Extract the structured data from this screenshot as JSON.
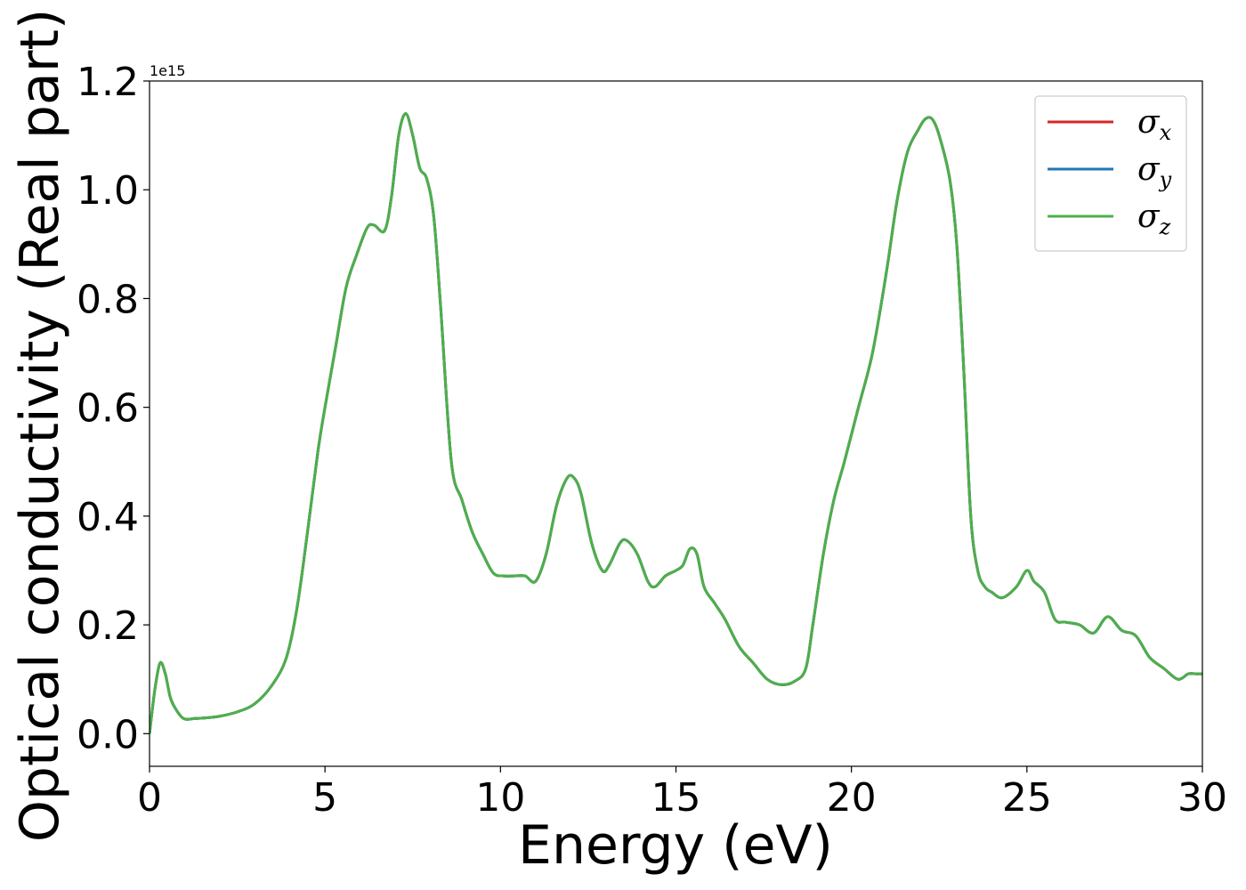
{
  "chart_data": {
    "type": "line",
    "title": "",
    "xlabel": "Energy (eV)",
    "ylabel": "Optical conductivity (Real part)",
    "y_offset_label": "1e15",
    "xlim": [
      0,
      30
    ],
    "ylim": [
      -0.06,
      1.2
    ],
    "xticks": [
      0,
      5,
      10,
      15,
      20,
      25,
      30
    ],
    "yticks": [
      0.0,
      0.2,
      0.4,
      0.6,
      0.8,
      1.0,
      1.2
    ],
    "xtick_labels": [
      "0",
      "5",
      "10",
      "15",
      "20",
      "25",
      "30"
    ],
    "ytick_labels": [
      "0.0",
      "0.2",
      "0.4",
      "0.6",
      "0.8",
      "1.0",
      "1.2"
    ],
    "grid": false,
    "legend_position": "top-right",
    "legend": [
      {
        "symbol": "σ",
        "sub": "x",
        "color": "#d62728"
      },
      {
        "symbol": "σ",
        "sub": "y",
        "color": "#1f77b4"
      },
      {
        "symbol": "σ",
        "sub": "z",
        "color": "#4daf4a"
      }
    ],
    "x": [
      0,
      0.15,
      0.3,
      0.45,
      0.6,
      0.8,
      1.0,
      1.3,
      1.6,
      2.0,
      2.5,
      3.0,
      3.5,
      3.9,
      4.2,
      4.5,
      4.8,
      5.0,
      5.3,
      5.6,
      5.9,
      6.2,
      6.4,
      6.7,
      6.9,
      7.1,
      7.3,
      7.5,
      7.7,
      7.9,
      8.1,
      8.3,
      8.6,
      8.9,
      9.2,
      9.5,
      9.8,
      10.1,
      10.4,
      10.7,
      11.0,
      11.3,
      11.6,
      11.9,
      12.1,
      12.3,
      12.6,
      12.9,
      13.1,
      13.4,
      13.6,
      13.9,
      14.2,
      14.4,
      14.7,
      15.0,
      15.2,
      15.4,
      15.6,
      15.8,
      16.1,
      16.4,
      16.8,
      17.2,
      17.6,
      18.0,
      18.4,
      18.7,
      18.9,
      19.2,
      19.5,
      19.8,
      20.2,
      20.6,
      21.0,
      21.3,
      21.6,
      21.9,
      22.1,
      22.3,
      22.5,
      22.8,
      23.0,
      23.2,
      23.4,
      23.6,
      23.8,
      24.0,
      24.3,
      24.7,
      25.0,
      25.2,
      25.5,
      25.8,
      26.1,
      26.5,
      26.9,
      27.3,
      27.7,
      28.1,
      28.5,
      28.9,
      29.3,
      29.6,
      29.8,
      30.0
    ],
    "series": [
      {
        "name": "σx",
        "values": [
          0.0,
          0.08,
          0.13,
          0.11,
          0.065,
          0.04,
          0.027,
          0.028,
          0.029,
          0.032,
          0.04,
          0.055,
          0.09,
          0.14,
          0.23,
          0.37,
          0.52,
          0.6,
          0.71,
          0.82,
          0.88,
          0.93,
          0.935,
          0.925,
          0.99,
          1.1,
          1.14,
          1.1,
          1.04,
          1.02,
          0.95,
          0.78,
          0.5,
          0.43,
          0.37,
          0.33,
          0.295,
          0.29,
          0.29,
          0.29,
          0.28,
          0.33,
          0.42,
          0.47,
          0.47,
          0.44,
          0.35,
          0.3,
          0.31,
          0.35,
          0.355,
          0.33,
          0.28,
          0.27,
          0.29,
          0.3,
          0.31,
          0.34,
          0.33,
          0.27,
          0.24,
          0.21,
          0.16,
          0.13,
          0.1,
          0.09,
          0.097,
          0.12,
          0.2,
          0.33,
          0.43,
          0.5,
          0.6,
          0.7,
          0.85,
          0.98,
          1.07,
          1.11,
          1.13,
          1.13,
          1.1,
          1.02,
          0.9,
          0.67,
          0.4,
          0.3,
          0.27,
          0.26,
          0.25,
          0.27,
          0.3,
          0.28,
          0.26,
          0.21,
          0.205,
          0.2,
          0.185,
          0.215,
          0.19,
          0.18,
          0.14,
          0.12,
          0.1,
          0.11,
          0.11,
          0.11
        ]
      },
      {
        "name": "σy",
        "values": [
          0.0,
          0.08,
          0.13,
          0.11,
          0.065,
          0.04,
          0.027,
          0.028,
          0.029,
          0.032,
          0.04,
          0.055,
          0.09,
          0.14,
          0.23,
          0.37,
          0.52,
          0.6,
          0.71,
          0.82,
          0.88,
          0.93,
          0.935,
          0.925,
          0.99,
          1.1,
          1.14,
          1.1,
          1.04,
          1.02,
          0.95,
          0.78,
          0.5,
          0.43,
          0.37,
          0.33,
          0.295,
          0.29,
          0.29,
          0.29,
          0.28,
          0.33,
          0.42,
          0.47,
          0.47,
          0.44,
          0.35,
          0.3,
          0.31,
          0.35,
          0.355,
          0.33,
          0.28,
          0.27,
          0.29,
          0.3,
          0.31,
          0.34,
          0.33,
          0.27,
          0.24,
          0.21,
          0.16,
          0.13,
          0.1,
          0.09,
          0.097,
          0.12,
          0.2,
          0.33,
          0.43,
          0.5,
          0.6,
          0.7,
          0.85,
          0.98,
          1.07,
          1.11,
          1.13,
          1.13,
          1.1,
          1.02,
          0.9,
          0.67,
          0.4,
          0.3,
          0.27,
          0.26,
          0.25,
          0.27,
          0.3,
          0.28,
          0.26,
          0.21,
          0.205,
          0.2,
          0.185,
          0.215,
          0.19,
          0.18,
          0.14,
          0.12,
          0.1,
          0.11,
          0.11,
          0.11
        ]
      },
      {
        "name": "σz",
        "values": [
          0.0,
          0.08,
          0.13,
          0.11,
          0.065,
          0.04,
          0.027,
          0.028,
          0.029,
          0.032,
          0.04,
          0.055,
          0.09,
          0.14,
          0.23,
          0.37,
          0.52,
          0.6,
          0.71,
          0.82,
          0.88,
          0.93,
          0.935,
          0.925,
          0.99,
          1.1,
          1.14,
          1.1,
          1.04,
          1.02,
          0.95,
          0.78,
          0.5,
          0.43,
          0.37,
          0.33,
          0.295,
          0.29,
          0.29,
          0.29,
          0.28,
          0.33,
          0.42,
          0.47,
          0.47,
          0.44,
          0.35,
          0.3,
          0.31,
          0.35,
          0.355,
          0.33,
          0.28,
          0.27,
          0.29,
          0.3,
          0.31,
          0.34,
          0.33,
          0.27,
          0.24,
          0.21,
          0.16,
          0.13,
          0.1,
          0.09,
          0.097,
          0.12,
          0.2,
          0.33,
          0.43,
          0.5,
          0.6,
          0.7,
          0.85,
          0.98,
          1.07,
          1.11,
          1.13,
          1.13,
          1.1,
          1.02,
          0.9,
          0.67,
          0.4,
          0.3,
          0.27,
          0.26,
          0.25,
          0.27,
          0.3,
          0.28,
          0.26,
          0.21,
          0.205,
          0.2,
          0.185,
          0.215,
          0.19,
          0.18,
          0.14,
          0.12,
          0.1,
          0.11,
          0.11,
          0.11
        ]
      }
    ]
  }
}
